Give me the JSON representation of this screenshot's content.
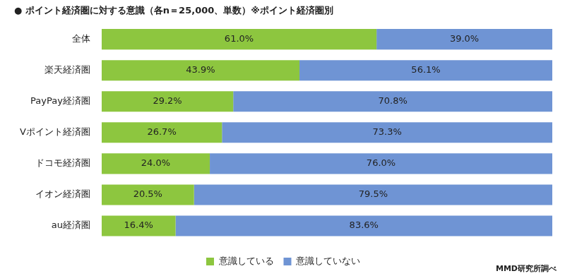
{
  "chart_data": {
    "type": "bar",
    "orientation": "horizontal",
    "stacked": true,
    "title": "● ポイント経済圏に対する意識（各n＝25,000、単数）※ポイント経済圏別",
    "annotations": [
      "MMD研究所調べ"
    ],
    "categories": [
      "全体",
      "楽天経済圏",
      "PayPay経済圏",
      "Vポイント経済圏",
      "ドコモ経済圏",
      "イオン経済圏",
      "au経済圏"
    ],
    "series": [
      {
        "name": "意識している",
        "color": "#8dc63f",
        "values": [
          61.0,
          43.9,
          29.2,
          26.7,
          24.0,
          20.5,
          16.4
        ],
        "value_labels": [
          "61.0%",
          "43.9%",
          "29.2%",
          "26.7%",
          "24.0%",
          "20.5%",
          "16.4%"
        ]
      },
      {
        "name": "意識していない",
        "color": "#6f94d4",
        "values": [
          39.0,
          56.1,
          70.8,
          73.3,
          76.0,
          79.5,
          83.6
        ],
        "value_labels": [
          "39.0%",
          "56.1%",
          "70.8%",
          "73.3%",
          "76.0%",
          "79.5%",
          "83.6%"
        ]
      }
    ],
    "xlim": [
      0,
      100
    ],
    "data_labels": true,
    "tick_labels": "y",
    "grid": false,
    "legend": "bottom"
  }
}
